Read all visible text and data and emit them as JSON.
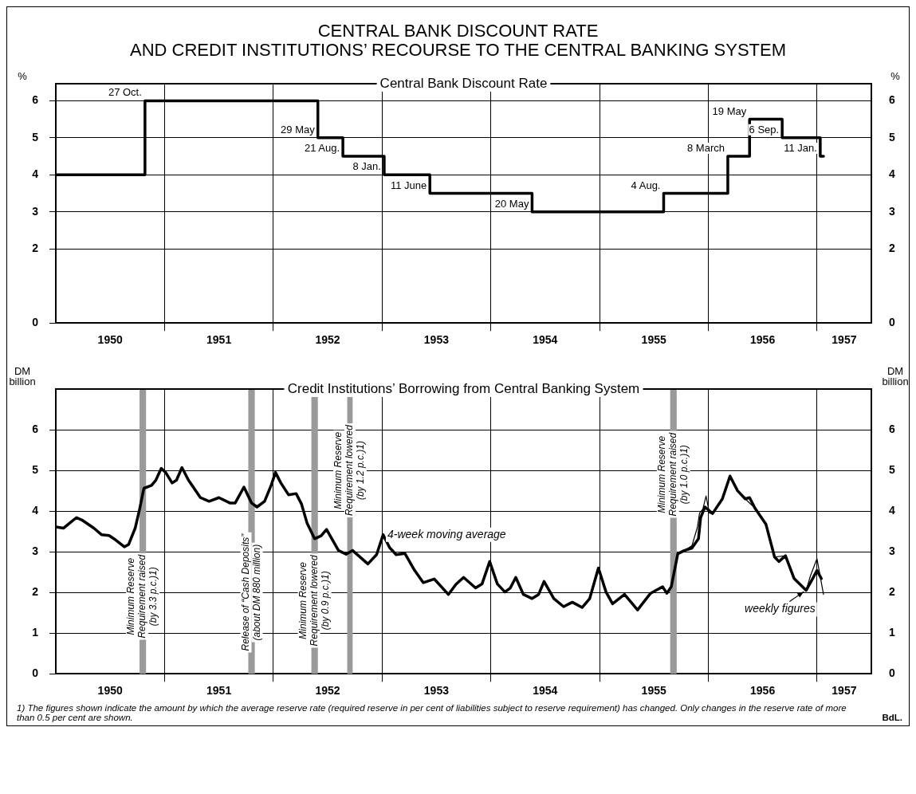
{
  "chart_data": [
    {
      "type": "step",
      "title": "CENTRAL BANK DISCOUNT RATE\nAND CREDIT INSTITUTIONS’ RECOURSE TO THE CENTRAL BANKING SYSTEM",
      "subtitle": "Central Bank Discount Rate",
      "ylabel": "%",
      "y2label": "%",
      "series": [
        {
          "color": "#000000",
          "x": [
            1950.0,
            1950.82,
            1952.41,
            1952.64,
            1953.02,
            1953.44,
            1954.38,
            1955.59,
            1956.18,
            1956.38,
            1956.68,
            1957.03,
            1957.06
          ],
          "values": [
            4,
            6,
            5,
            4.5,
            4,
            3.5,
            3,
            3.5,
            4.5,
            5.5,
            5,
            4.5,
            4.5
          ]
        }
      ],
      "xlim": [
        1950,
        1957.5
      ],
      "xticks": [
        {
          "value": 1950.5,
          "label": "1950"
        },
        {
          "value": 1951,
          "label": null
        },
        {
          "value": 1951.5,
          "label": "1951"
        },
        {
          "value": 1952,
          "label": null
        },
        {
          "value": 1952.5,
          "label": "1952"
        },
        {
          "value": 1953,
          "label": null
        },
        {
          "value": 1953.5,
          "label": "1953"
        },
        {
          "value": 1954,
          "label": null
        },
        {
          "value": 1954.5,
          "label": "1954"
        },
        {
          "value": 1955,
          "label": null
        },
        {
          "value": 1955.5,
          "label": "1955"
        },
        {
          "value": 1956,
          "label": null
        },
        {
          "value": 1956.5,
          "label": "1956"
        },
        {
          "value": 1957,
          "label": null
        },
        {
          "value": 1957.25,
          "label": "1957"
        }
      ],
      "ylim": [
        0,
        6.46
      ],
      "yticks": [
        0,
        2,
        3,
        4,
        5,
        6
      ],
      "y2lim": [
        0,
        6.46
      ],
      "y2ticks": [
        0,
        2,
        3,
        4,
        5,
        6
      ],
      "grid": true,
      "legend": false,
      "annotations": [
        {
          "text": "27 Oct.",
          "x": 1950.82,
          "y": 6
        },
        {
          "text": "29 May",
          "x": 1952.41,
          "y": 5
        },
        {
          "text": "21 Aug.",
          "x": 1952.64,
          "y": 4.5
        },
        {
          "text": "8 Jan.",
          "x": 1953.02,
          "y": 4
        },
        {
          "text": "11 June",
          "x": 1953.44,
          "y": 3.5
        },
        {
          "text": "20 May",
          "x": 1954.38,
          "y": 3
        },
        {
          "text": "4 Aug.",
          "x": 1955.59,
          "y": 3.5
        },
        {
          "text": "8 March",
          "x": 1956.18,
          "y": 4.5
        },
        {
          "text": "19 May",
          "x": 1956.38,
          "y": 5.5
        },
        {
          "text": "6 Sep.",
          "x": 1956.68,
          "y": 5
        },
        {
          "text": "11 Jan.",
          "x": 1957.03,
          "y": 4.5
        }
      ]
    },
    {
      "type": "line",
      "title": "Credit Institutions’ Borrowing from Central Banking System",
      "ylabel": "DM billion",
      "y2label": "DM billion",
      "series": [
        {
          "name": "4-week moving average",
          "color": "#000000",
          "x": [
            1950.0,
            1950.07,
            1950.13,
            1950.19,
            1950.24,
            1950.35,
            1950.42,
            1950.49,
            1950.55,
            1950.63,
            1950.67,
            1950.73,
            1950.77,
            1950.81,
            1950.88,
            1950.92,
            1950.97,
            1951.01,
            1951.07,
            1951.11,
            1951.16,
            1951.22,
            1951.33,
            1951.41,
            1951.5,
            1951.6,
            1951.65,
            1951.73,
            1951.8,
            1951.85,
            1951.92,
            1951.98,
            1952.02,
            1952.07,
            1952.14,
            1952.21,
            1952.26,
            1952.31,
            1952.38,
            1952.44,
            1952.49,
            1952.6,
            1952.67,
            1952.73,
            1952.87,
            1952.95,
            1953.01,
            1953.07,
            1953.13,
            1953.21,
            1953.3,
            1953.38,
            1953.48,
            1953.61,
            1953.68,
            1953.75,
            1953.86,
            1953.92,
            1953.99,
            1954.06,
            1954.13,
            1954.18,
            1954.23,
            1954.3,
            1954.38,
            1954.44,
            1954.49,
            1954.58,
            1954.67,
            1954.75,
            1954.84,
            1954.91,
            1954.99,
            1955.06,
            1955.12,
            1955.23,
            1955.35,
            1955.47,
            1955.58,
            1955.62,
            1955.66,
            1955.72,
            1955.78,
            1955.85,
            1955.91,
            1955.93,
            1955.97,
            1956.04,
            1956.13,
            1956.2,
            1956.27,
            1956.34,
            1956.38,
            1956.43,
            1956.53,
            1956.61,
            1956.65,
            1956.71,
            1956.79,
            1956.9,
            1956.96,
            1957.0,
            1957.04
          ],
          "values": [
            3.61,
            3.58,
            3.71,
            3.84,
            3.78,
            3.58,
            3.42,
            3.4,
            3.29,
            3.12,
            3.18,
            3.58,
            4.04,
            4.56,
            4.63,
            4.76,
            5.05,
            4.95,
            4.69,
            4.76,
            5.07,
            4.76,
            4.33,
            4.24,
            4.33,
            4.2,
            4.2,
            4.59,
            4.2,
            4.1,
            4.24,
            4.63,
            4.95,
            4.69,
            4.4,
            4.43,
            4.17,
            3.71,
            3.32,
            3.39,
            3.55,
            3.03,
            2.94,
            3.03,
            2.7,
            2.93,
            3.42,
            3.1,
            2.93,
            2.96,
            2.54,
            2.24,
            2.33,
            1.95,
            2.2,
            2.37,
            2.11,
            2.21,
            2.76,
            2.21,
            2.01,
            2.11,
            2.37,
            1.95,
            1.85,
            1.95,
            2.27,
            1.85,
            1.65,
            1.76,
            1.63,
            1.85,
            2.6,
            2.01,
            1.72,
            1.95,
            1.57,
            1.98,
            2.14,
            1.98,
            2.14,
            2.95,
            3.03,
            3.09,
            3.32,
            3.84,
            4.1,
            3.94,
            4.3,
            4.86,
            4.5,
            4.3,
            4.33,
            4.07,
            3.68,
            2.87,
            2.76,
            2.9,
            2.34,
            2.05,
            2.34,
            2.54,
            2.34
          ]
        },
        {
          "name": "weekly figures",
          "color": "#000000",
          "x": [
            1955.72,
            1955.78,
            1955.85,
            1955.9,
            1955.92,
            1955.95,
            1955.98,
            1956.01,
            1956.04,
            1956.13,
            1956.2,
            1956.27,
            1956.34,
            1956.43,
            1956.53,
            1956.61,
            1956.71,
            1956.79,
            1956.9,
            1956.94,
            1957.0,
            1957.06
          ],
          "values": [
            2.95,
            3.03,
            3.15,
            3.6,
            3.95,
            4.05,
            4.37,
            3.95,
            3.94,
            4.3,
            4.86,
            4.5,
            4.3,
            4.07,
            3.68,
            2.87,
            2.9,
            2.34,
            2.05,
            2.41,
            2.83,
            1.95
          ]
        }
      ],
      "xlim": [
        1950,
        1957.5
      ],
      "xticks": [
        {
          "value": 1950.5,
          "label": "1950"
        },
        {
          "value": 1951,
          "label": null
        },
        {
          "value": 1951.5,
          "label": "1951"
        },
        {
          "value": 1952,
          "label": null
        },
        {
          "value": 1952.5,
          "label": "1952"
        },
        {
          "value": 1953,
          "label": null
        },
        {
          "value": 1953.5,
          "label": "1953"
        },
        {
          "value": 1954,
          "label": null
        },
        {
          "value": 1954.5,
          "label": "1954"
        },
        {
          "value": 1955,
          "label": null
        },
        {
          "value": 1955.5,
          "label": "1955"
        },
        {
          "value": 1956,
          "label": null
        },
        {
          "value": 1956.5,
          "label": "1956"
        },
        {
          "value": 1957,
          "label": null
        },
        {
          "value": 1957.25,
          "label": "1957"
        }
      ],
      "ylim": [
        0,
        7
      ],
      "yticks": [
        0,
        1,
        2,
        3,
        4,
        5,
        6
      ],
      "y2lim": [
        0,
        7
      ],
      "y2ticks": [
        0,
        1,
        2,
        3,
        4,
        5,
        6
      ],
      "grid": true,
      "bands": [
        {
          "axis": "x",
          "from": 1950.77,
          "to": 1950.83,
          "color": "#9a9a9a",
          "label": "Minimum Reserve\nRequirement raised\n(by 3.3 p.c.)1)"
        },
        {
          "axis": "x",
          "from": 1951.77,
          "to": 1951.83,
          "color": "#9a9a9a",
          "label": "Release of “Cash Deposits”\n(about DM 880 million)"
        },
        {
          "axis": "x",
          "from": 1952.35,
          "to": 1952.41,
          "color": "#9a9a9a",
          "label": "Minimum Reserve\nRequirement lowered\n(by 0.9 p.c.)1)"
        },
        {
          "axis": "x",
          "from": 1952.68,
          "to": 1952.73,
          "color": "#9a9a9a",
          "label": "Minimum Reserve\nRequirement lowered\n(by 1.2 p.c.)1)"
        },
        {
          "axis": "x",
          "from": 1955.65,
          "to": 1955.71,
          "color": "#9a9a9a",
          "label": "Minimum Reserve\nRequirement raised\n(by 1.0 p.c.)1)"
        }
      ],
      "annotations": [
        "1) The figures shown indicate the amount by which the average reserve rate (required reserve in per cent of liabilities subject to reserve requirement) has changed. Only changes in the reserve rate of more than 0.5 per cent are shown.",
        "BdL."
      ]
    }
  ]
}
